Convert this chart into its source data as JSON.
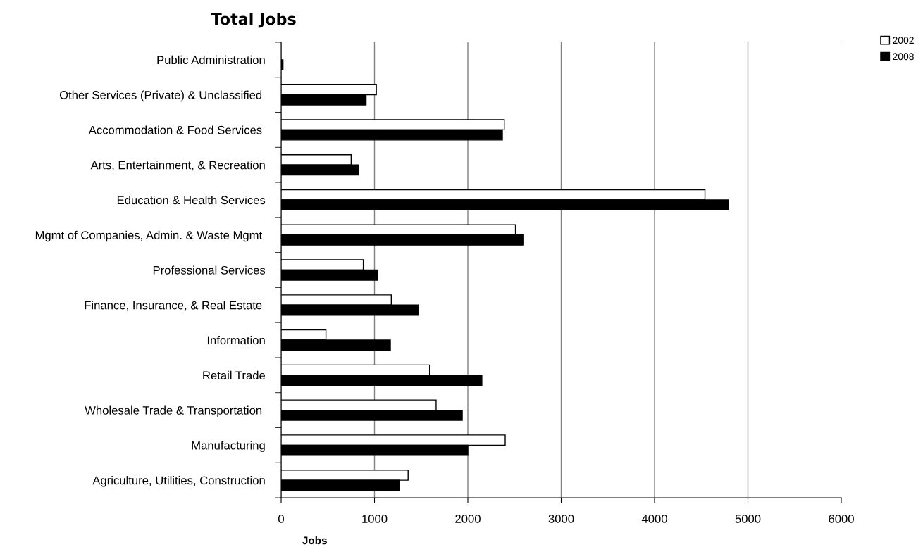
{
  "chart_data": {
    "type": "bar",
    "orientation": "horizontal",
    "title": "Total Jobs",
    "xlabel": "Jobs",
    "categories": [
      "Public Administration",
      "Other Services (Private) & Unclassified ",
      "Accommodation & Food Services ",
      "Arts, Entertainment, & Recreation",
      "Education & Health Services",
      "Mgmt of Companies, Admin. & Waste Mgmt ",
      "Professional Services",
      "Finance, Insurance, & Real Estate ",
      "Information",
      "Retail Trade",
      "Wholesale Trade & Transportation ",
      "Manufacturing",
      "Agriculture, Utilities, Construction"
    ],
    "series": [
      {
        "name": "2002",
        "color": "#ffffff",
        "values": [
          null,
          1020,
          2390,
          750,
          4540,
          2510,
          880,
          1180,
          480,
          1590,
          1660,
          2400,
          1360
        ]
      },
      {
        "name": "2008",
        "color": "#000000",
        "values": [
          20,
          910,
          2370,
          830,
          4790,
          2590,
          1030,
          1470,
          1170,
          2150,
          1940,
          2000,
          1270
        ]
      }
    ],
    "xlim": [
      0,
      6000
    ],
    "xticks": [
      0,
      1000,
      2000,
      3000,
      4000,
      5000,
      6000
    ],
    "grid": "x",
    "legend": "top right"
  }
}
